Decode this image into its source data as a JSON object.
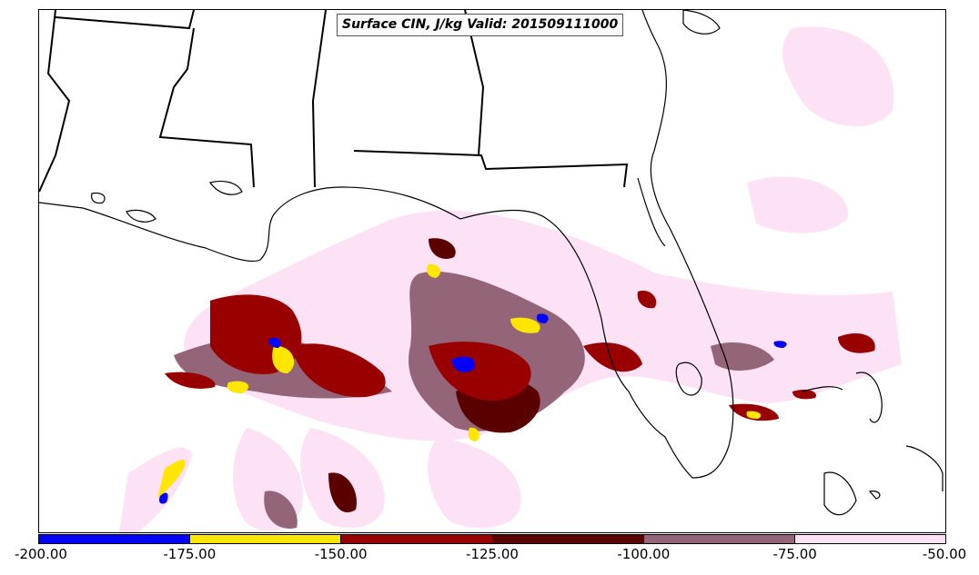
{
  "title": "Surface CIN, J/kg Valid: 201509111000",
  "colorbar": {
    "segments": [
      {
        "name": "cin-bin-200-175",
        "color": "#0000ff"
      },
      {
        "name": "cin-bin-175-150",
        "color": "#ffe600"
      },
      {
        "name": "cin-bin-150-125",
        "color": "#990000"
      },
      {
        "name": "cin-bin-125-100",
        "color": "#5a0000"
      },
      {
        "name": "cin-bin-100-75",
        "color": "#946478"
      },
      {
        "name": "cin-bin-75-50",
        "color": "#fde1f4"
      }
    ],
    "ticks": [
      "-200.00",
      "-175.00",
      "-150.00",
      "-125.00",
      "-100.00",
      "-75.00",
      "-50.00"
    ]
  }
}
